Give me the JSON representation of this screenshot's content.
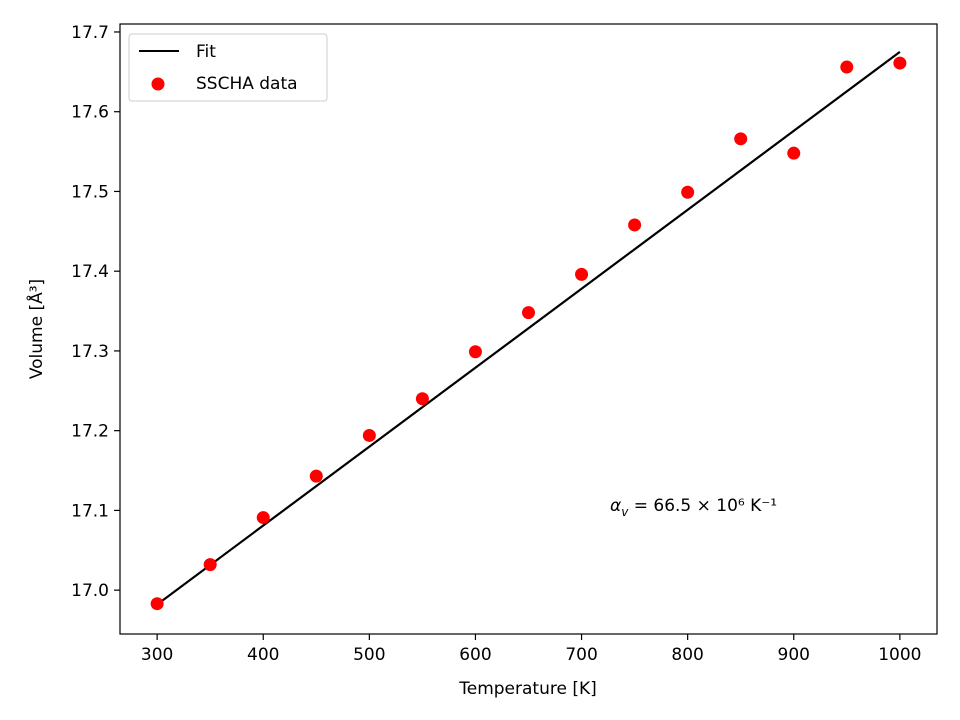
{
  "chart_data": {
    "type": "scatter",
    "title": "",
    "xlabel": "Temperature [K]",
    "ylabel": "Volume [Å³]",
    "xlim": [
      265,
      1035
    ],
    "ylim": [
      16.945,
      17.71
    ],
    "xticks": [
      300,
      400,
      500,
      600,
      700,
      800,
      900,
      1000
    ],
    "yticks": [
      17.0,
      17.1,
      17.2,
      17.3,
      17.4,
      17.5,
      17.6,
      17.7
    ],
    "ytick_labels": [
      "17.0",
      "17.1",
      "17.2",
      "17.3",
      "17.4",
      "17.5",
      "17.6",
      "17.7"
    ],
    "grid": false,
    "legend_position": "top-left",
    "series": [
      {
        "name": "Fit",
        "kind": "line",
        "color": "#000000",
        "x": [
          300,
          1000
        ],
        "y": [
          16.982,
          17.675
        ]
      },
      {
        "name": "SSCHA data",
        "kind": "scatter",
        "color": "#ff0000",
        "x": [
          300,
          350,
          400,
          450,
          500,
          550,
          600,
          650,
          700,
          750,
          800,
          850,
          900,
          950,
          1000
        ],
        "y": [
          16.983,
          17.032,
          17.091,
          17.143,
          17.194,
          17.24,
          17.299,
          17.348,
          17.396,
          17.458,
          17.499,
          17.566,
          17.548,
          17.656,
          17.661
        ]
      }
    ],
    "annotation": {
      "text": "α_v = 66.5 × 10⁶ K⁻¹",
      "x": 730,
      "y": 17.105
    }
  }
}
